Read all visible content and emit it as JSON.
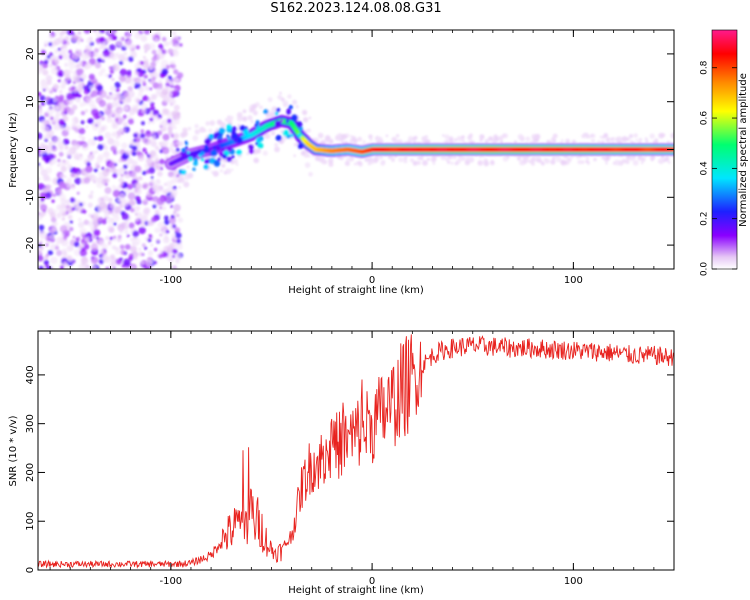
{
  "figure_title": "S162.2023.124.08.08.G31",
  "chart_data": [
    {
      "type": "heatmap",
      "xlabel": "Height of straight line (km)",
      "ylabel": "Frequency (Hz)",
      "xlim": [
        -166,
        150
      ],
      "ylim": [
        -25,
        25
      ],
      "xticks": [
        -100,
        0,
        100
      ],
      "yticks": [
        -20,
        -10,
        0,
        10,
        20
      ],
      "colorbar": {
        "label": "Normalized spectral amplitude",
        "range": [
          0,
          0.95
        ],
        "ticks": [
          0.0,
          0.2,
          0.4,
          0.6,
          0.8
        ],
        "colormap": [
          "#ffffff",
          "#e6c7f5",
          "#8a00ff",
          "#1d20ff",
          "#00e6ff",
          "#00ff70",
          "#ffff00",
          "#ff8a00",
          "#ff0000",
          "#ff1a8c"
        ]
      },
      "ridge": {
        "x": [
          -100,
          -90,
          -80,
          -70,
          -60,
          -52,
          -45,
          -40,
          -36,
          -32,
          -28,
          -20,
          -12,
          -5,
          0,
          10,
          30,
          60,
          100,
          150
        ],
        "frequency": [
          -3,
          -1,
          0,
          1.5,
          3,
          5,
          6,
          5.5,
          3,
          1.2,
          0,
          -0.3,
          0,
          -0.5,
          0,
          0,
          0,
          0,
          0,
          0
        ],
        "amplitude": [
          0.25,
          0.28,
          0.32,
          0.38,
          0.45,
          0.5,
          0.58,
          0.55,
          0.6,
          0.7,
          0.72,
          0.78,
          0.8,
          0.82,
          0.85,
          0.88,
          0.9,
          0.92,
          0.9,
          0.85
        ]
      },
      "noise_region": {
        "x_range": [
          -166,
          -95
        ],
        "frequency_range": [
          -25,
          25
        ],
        "amplitude_range": [
          0.05,
          0.3
        ]
      }
    },
    {
      "type": "line",
      "xlabel": "Height of straight line (km)",
      "ylabel": "SNR (10 * v/v)",
      "xlim": [
        -166,
        150
      ],
      "ylim": [
        0,
        490
      ],
      "xticks": [
        -100,
        0,
        100
      ],
      "yticks": [
        0,
        100,
        200,
        300,
        400
      ],
      "color": "#e8231f",
      "series": [
        {
          "x": [
            -166,
            -140,
            -110,
            -100,
            -90,
            -80,
            -75,
            -70,
            -65,
            -62,
            -60,
            -57,
            -55,
            -52,
            -50,
            -48,
            -45,
            -42,
            -40,
            -38,
            -35,
            -32,
            -30,
            -28,
            -25,
            -22,
            -20,
            -15,
            -10,
            -5,
            0,
            5,
            10,
            15,
            20,
            25,
            30,
            35,
            40,
            45,
            50,
            60,
            70,
            80,
            90,
            100,
            110,
            120,
            130,
            140,
            150
          ],
          "y": [
            12,
            12,
            12,
            12,
            14,
            30,
            60,
            80,
            100,
            110,
            110,
            100,
            85,
            55,
            40,
            35,
            40,
            60,
            70,
            110,
            170,
            200,
            220,
            215,
            230,
            240,
            250,
            260,
            270,
            290,
            300,
            320,
            340,
            370,
            390,
            420,
            440,
            450,
            455,
            458,
            460,
            458,
            455,
            455,
            452,
            450,
            448,
            445,
            440,
            440,
            435
          ]
        }
      ]
    }
  ]
}
